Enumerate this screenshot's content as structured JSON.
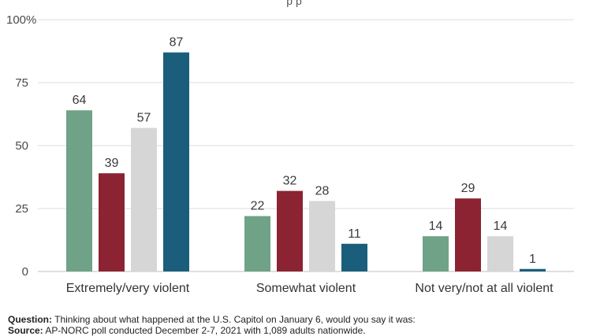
{
  "chart_data": {
    "type": "bar",
    "title_partial": "p    p",
    "categories": [
      "Extremely/very violent",
      "Somewhat violent",
      "Not very/not at all violent"
    ],
    "series": [
      {
        "color": "#6fa286",
        "values": [
          64,
          22,
          14
        ]
      },
      {
        "color": "#8b2332",
        "values": [
          39,
          32,
          29
        ]
      },
      {
        "color": "#d6d6d6",
        "values": [
          57,
          28,
          14
        ]
      },
      {
        "color": "#1b5e7c",
        "values": [
          87,
          11,
          1
        ]
      }
    ],
    "yticks": [
      "0",
      "25",
      "50",
      "75",
      "100%"
    ],
    "ytick_values": [
      0,
      25,
      50,
      75,
      100
    ],
    "ylim": [
      0,
      100
    ],
    "grid": true,
    "legend": "none"
  },
  "footnotes": {
    "question_label": "Question:",
    "question_text": " Thinking about what happened at the U.S. Capitol on January 6, would you say it was:",
    "source_label": "Source:",
    "source_text": "  AP-NORC poll conducted December 2-7, 2021 with 1,089 adults nationwide."
  },
  "colors": {
    "grid": "#dcdcdc",
    "axis": "#bfbfbf"
  }
}
